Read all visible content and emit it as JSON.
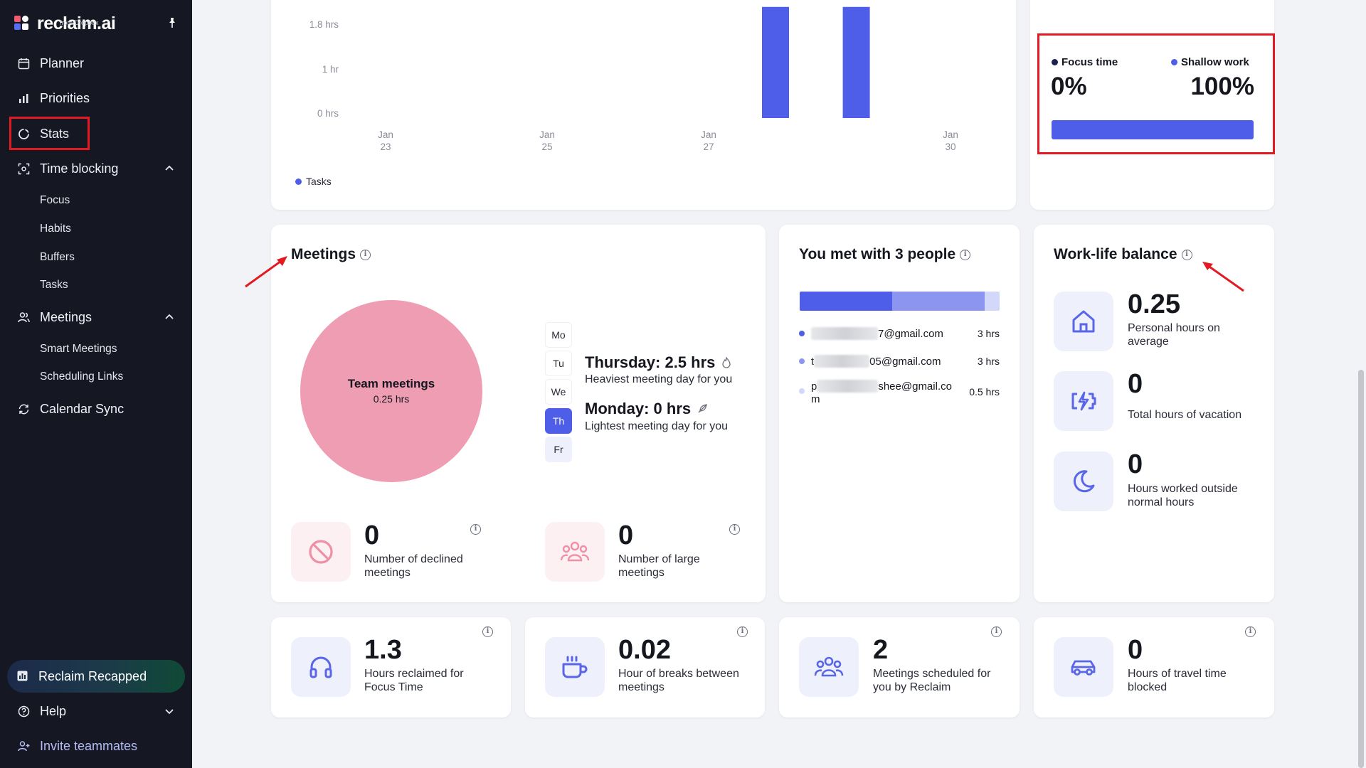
{
  "app": {
    "brand": "reclaim.ai",
    "brand_sub": "from Dropbox"
  },
  "sidebar": {
    "items": [
      {
        "label": "Planner"
      },
      {
        "label": "Priorities"
      },
      {
        "label": "Stats"
      },
      {
        "label": "Time blocking"
      },
      {
        "label": "Meetings"
      },
      {
        "label": "Calendar Sync"
      }
    ],
    "time_blocking_sub": [
      "Focus",
      "Habits",
      "Buffers",
      "Tasks"
    ],
    "meetings_sub": [
      "Smart Meetings",
      "Scheduling Links"
    ],
    "recap": "Reclaim Recapped",
    "help": "Help",
    "invite": "Invite teammates"
  },
  "tasks_chart": {
    "y_ticks": [
      "1.8 hrs",
      "1 hr",
      "0 hrs"
    ],
    "x_ticks": [
      {
        "m": "Jan",
        "d": "23"
      },
      {
        "m": "Jan",
        "d": "25"
      },
      {
        "m": "Jan",
        "d": "27"
      },
      {
        "m": "Jan",
        "d": "30"
      }
    ],
    "legend": "Tasks"
  },
  "chart_data": {
    "type": "bar",
    "series": [
      {
        "name": "Tasks",
        "color": "#4f5ee8",
        "values": [
          0,
          0,
          0,
          0,
          0,
          2.5,
          2.5,
          0
        ]
      }
    ],
    "categories": [
      "Jan 23",
      "Jan 24",
      "Jan 25",
      "Jan 26",
      "Jan 27",
      "Jan 28",
      "Jan 29",
      "Jan 30"
    ],
    "y_ticks": [
      "0 hrs",
      "1 hr",
      "1.8 hrs"
    ],
    "ylim": [
      0,
      2.7
    ],
    "legend": "bottom-left"
  },
  "focus_card": {
    "focus_label": "Focus time",
    "focus_value": "0%",
    "shallow_label": "Shallow work",
    "shallow_value": "100%",
    "shallow_fraction": 1.0,
    "focus_color": "#1c2050",
    "shallow_color": "#4f5ee8"
  },
  "meetings": {
    "title": "Meetings",
    "pie_label": "Team meetings",
    "pie_value": "0.25 hrs",
    "pie_color": "#ee9db3",
    "days": [
      "Mo",
      "Tu",
      "We",
      "Th",
      "Fr"
    ],
    "active_day": "Th",
    "heaviest_title": "Thursday: 2.5 hrs",
    "heaviest_sub": "Heaviest meeting day for you",
    "lightest_title": "Monday: 0 hrs",
    "lightest_sub": "Lightest meeting day for you",
    "declined_value": "0",
    "declined_label": "Number of declined meetings",
    "large_value": "0",
    "large_label": "Number of large meetings"
  },
  "people": {
    "title": "You met with 3 people",
    "bar_fractions": [
      0.463,
      0.463,
      0.074
    ],
    "rows": [
      {
        "email_end": "7@gmail.com",
        "hours": "3 hrs",
        "color": "#4f5ee8"
      },
      {
        "email_start": "t",
        "email_end": "05@gmail.com",
        "hours": "3 hrs",
        "color": "#8c96f0"
      },
      {
        "email_start": "p",
        "email_end": "shee@gmail.co",
        "email_wrap": "m",
        "hours": "0.5 hrs",
        "color": "#d3d7fa"
      }
    ]
  },
  "wlb": {
    "title": "Work-life balance",
    "personal_value": "0.25",
    "personal_label": "Personal hours on average",
    "vacation_value": "0",
    "vacation_label": "Total hours of vacation",
    "outside_value": "0",
    "outside_label": "Hours worked outside normal hours"
  },
  "bottom": [
    {
      "value": "1.3",
      "label": "Hours reclaimed for Focus Time",
      "icon": "headphones-icon"
    },
    {
      "value": "0.02",
      "label": "Hour of breaks between meetings",
      "icon": "coffee-cup-icon"
    },
    {
      "value": "2",
      "label": "Meetings scheduled for you by Reclaim",
      "icon": "people-group-icon"
    },
    {
      "value": "0",
      "label": "Hours of travel time blocked",
      "icon": "car-icon"
    }
  ]
}
